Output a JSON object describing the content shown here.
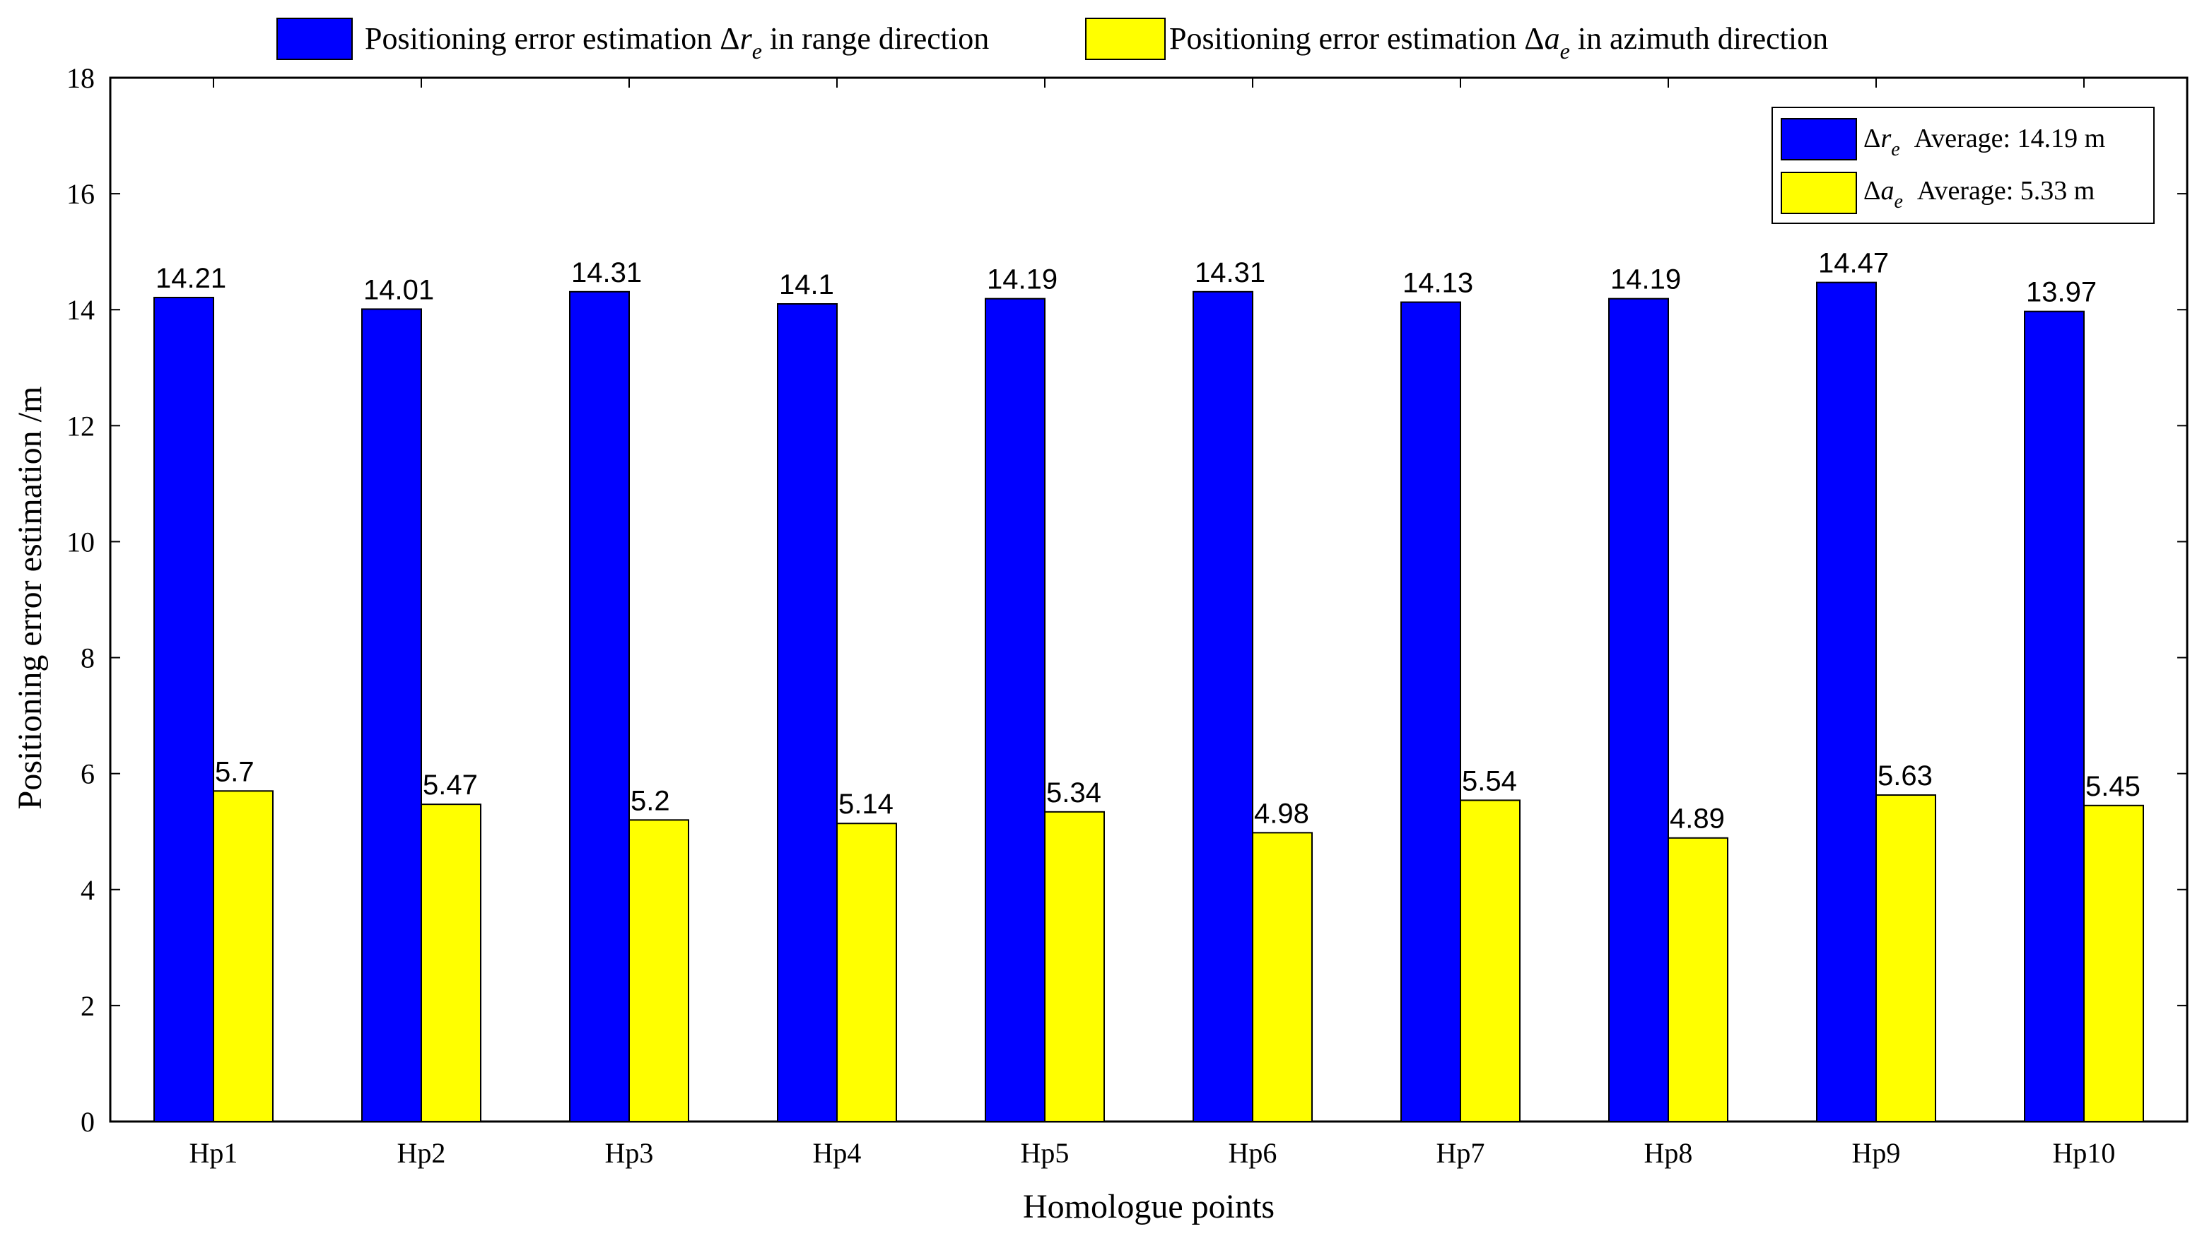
{
  "colors": {
    "range": "#0000ff",
    "azimuth": "#ffff00",
    "axis": "#000000"
  },
  "chart_data": {
    "type": "bar",
    "xlabel": "Homologue points",
    "ylabel": "Positioning error estimation /m",
    "ylim": [
      0,
      18
    ],
    "yticks": [
      0,
      2,
      4,
      6,
      8,
      10,
      12,
      14,
      16,
      18
    ],
    "categories": [
      "Hp1",
      "Hp2",
      "Hp3",
      "Hp4",
      "Hp5",
      "Hp6",
      "Hp7",
      "Hp8",
      "Hp9",
      "Hp10"
    ],
    "series": [
      {
        "name": "Positioning error estimation Δr_e in range direction",
        "legend_prefix": "Positioning error estimation Δ",
        "legend_var": "r",
        "legend_sub": "e",
        "legend_suffix": " in range direction",
        "values": [
          14.21,
          14.01,
          14.31,
          14.1,
          14.19,
          14.31,
          14.13,
          14.19,
          14.47,
          13.97
        ],
        "labels": [
          "14.21",
          "14.01",
          "14.31",
          "14.1",
          "14.19",
          "14.31",
          "14.13",
          "14.19",
          "14.47",
          "13.97"
        ]
      },
      {
        "name": "Positioning error estimation Δa_e in azimuth direction",
        "legend_prefix": "Positioning error estimation  Δ",
        "legend_var": "a",
        "legend_sub": "e",
        "legend_suffix": " in azimuth direction",
        "values": [
          5.7,
          5.47,
          5.2,
          5.14,
          5.34,
          4.98,
          5.54,
          4.89,
          5.63,
          5.45
        ],
        "labels": [
          "5.7",
          "5.47",
          "5.2",
          "5.14",
          "5.34",
          "4.98",
          "5.54",
          "4.89",
          "5.63",
          "5.45"
        ]
      }
    ],
    "averages": [
      {
        "var": "r",
        "sub": "e",
        "text": "Average: 14.19 m"
      },
      {
        "var": "a",
        "sub": "e",
        "text": "Average: 5.33 m"
      }
    ]
  }
}
